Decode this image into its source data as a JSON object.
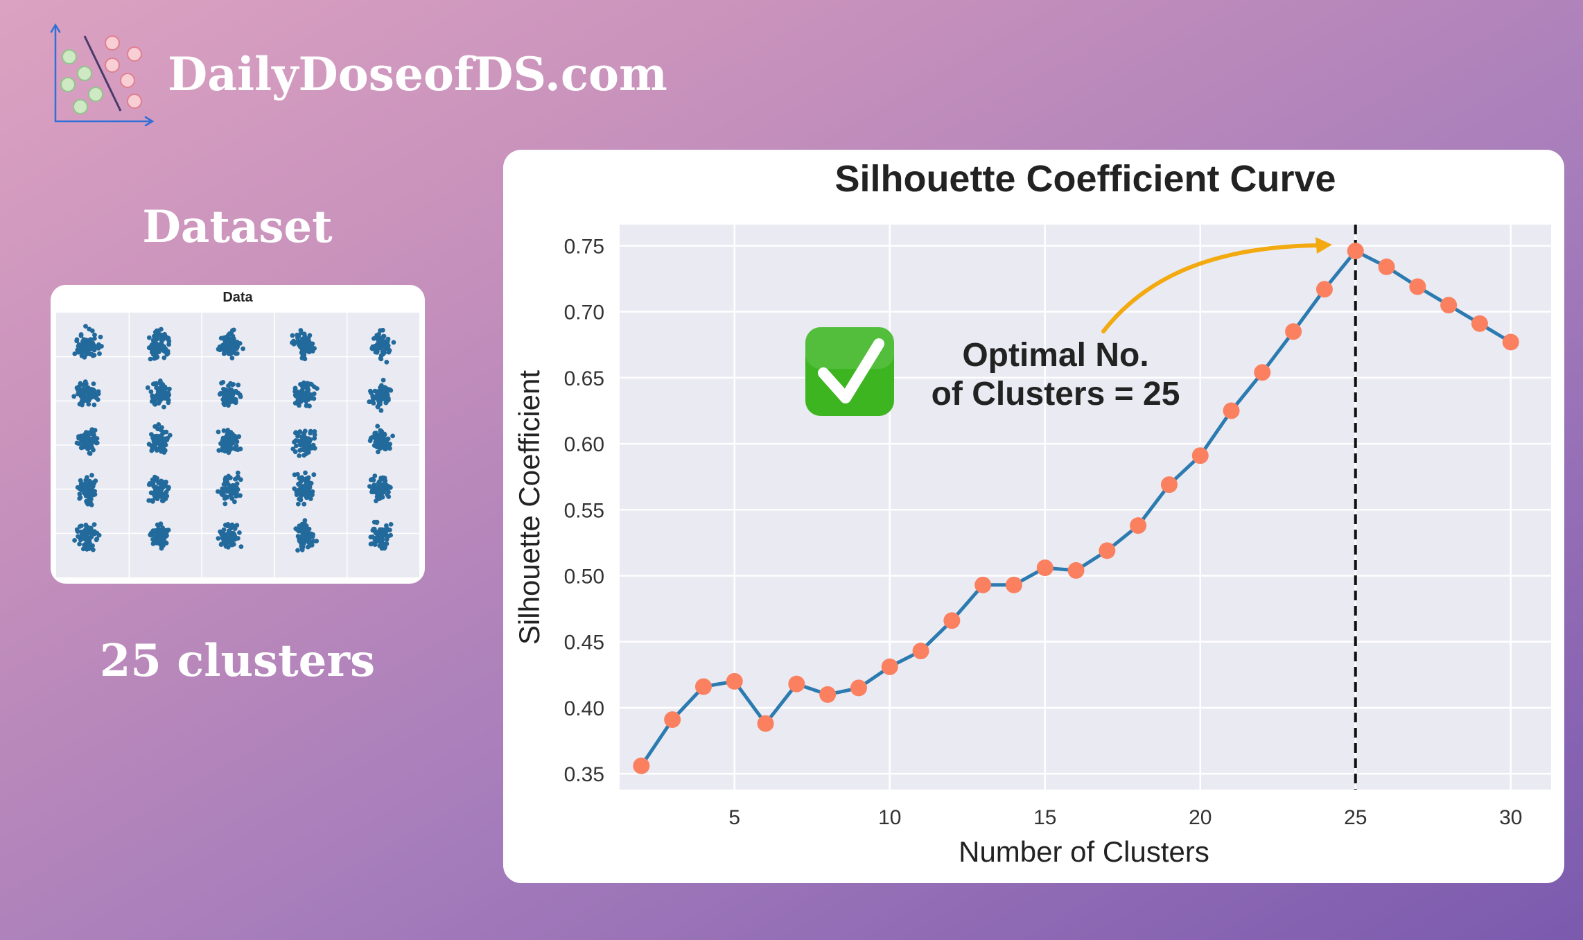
{
  "brand": {
    "name": "DailyDoseofDS.com"
  },
  "left_panel": {
    "title": "Dataset",
    "caption": "25 clusters"
  },
  "annotation": {
    "line1": "Optimal No.",
    "line2": "of Clusters = 25",
    "check_icon": "check-mark-button-icon"
  },
  "colors": {
    "line": "#2b7bb0",
    "marker": "#fa8060",
    "arrow": "#f2aa10",
    "scatter": "#236a9c",
    "check_green": "#3cb521",
    "plot_bg": "#eaeaf2"
  },
  "chart_data": [
    {
      "type": "scatter",
      "title": "Data",
      "series": [
        {
          "points": "25 blob clusters arranged in a 5 x 5 grid",
          "clusters": 25
        }
      ],
      "grid": true
    },
    {
      "type": "line",
      "title": "Silhouette Coefficient Curve",
      "xlabel": "Number of Clusters",
      "ylabel": "Silhouette Coefficient",
      "x": [
        2,
        3,
        4,
        5,
        6,
        7,
        8,
        9,
        10,
        11,
        12,
        13,
        14,
        15,
        16,
        17,
        18,
        19,
        20,
        21,
        22,
        23,
        24,
        25,
        26,
        27,
        28,
        29,
        30
      ],
      "series": [
        {
          "values": [
            0.356,
            0.391,
            0.416,
            0.42,
            0.388,
            0.418,
            0.41,
            0.415,
            0.431,
            0.443,
            0.466,
            0.493,
            0.493,
            0.506,
            0.504,
            0.519,
            0.538,
            0.569,
            0.591,
            0.625,
            0.654,
            0.685,
            0.717,
            0.746,
            0.734,
            0.719,
            0.705,
            0.691,
            0.677
          ]
        }
      ],
      "xticks": [
        5,
        10,
        15,
        20,
        25,
        30
      ],
      "yticks": [
        0.35,
        0.4,
        0.45,
        0.5,
        0.55,
        0.6,
        0.65,
        0.7,
        0.75
      ],
      "xlim": [
        1.3,
        31.3
      ],
      "ylim": [
        0.338,
        0.766
      ],
      "optimal_k": 25,
      "vline_x": 25,
      "grid": true
    }
  ]
}
